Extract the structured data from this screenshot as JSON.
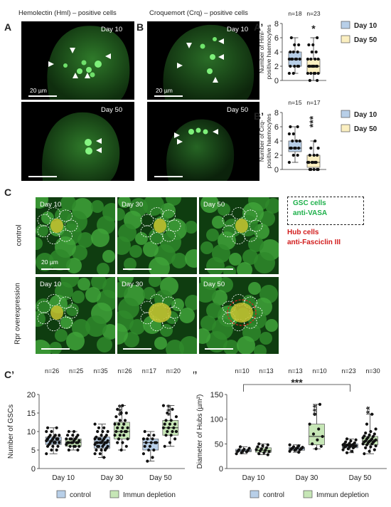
{
  "panels": {
    "A": {
      "label": "A",
      "title": "Hemolectin (Hml) – positive cells",
      "day_top": "Day 10",
      "day_bottom": "Day 50",
      "scale": "20 µm"
    },
    "B": {
      "label": "B",
      "title": "Croquemort (Crq) – positive cells",
      "day_top": "Day 10",
      "day_bottom": "Day 50",
      "scale": "20 µm"
    },
    "C": {
      "label": "C",
      "row1": "control",
      "row2": "Rpr overexpression",
      "days": [
        "Day 10",
        "Day 30",
        "Day 50"
      ],
      "scale": "20 µm",
      "legend": {
        "gsc": "GSC cells",
        "vasa": "anti-VASA",
        "hub": "Hub cells",
        "fas": "anti-Fasciclin III"
      }
    }
  },
  "colors": {
    "control": "#b8cfe8",
    "treatment": "#fbefc0",
    "immun": "#c6e6b6",
    "green_signal": "#22c63c",
    "hub_red": "#e42020"
  },
  "chart_data": [
    {
      "id": "A-prime",
      "label": "A’",
      "type": "box",
      "categories": [
        "Day 10",
        "Day 50"
      ],
      "n_labels": [
        "n=18",
        "n=23"
      ],
      "ylabel": "Number of Hml-positive haemocytes",
      "ylabel_lines": [
        "Number of Hml-",
        "positive haemocytes"
      ],
      "ylim": [
        0,
        8
      ],
      "yticks": [
        0,
        2,
        4,
        6,
        8
      ],
      "significance": "*",
      "legend": [
        "Day 10",
        "Day 50"
      ],
      "series": [
        {
          "name": "Day 10",
          "color": "#b8cfe8",
          "q1": 2,
          "median": 3,
          "q3": 4,
          "min": 1,
          "max": 6,
          "points": [
            1,
            1,
            2,
            2,
            2,
            2,
            3,
            3,
            3,
            3,
            3,
            3,
            4,
            4,
            4,
            5,
            5,
            6
          ]
        },
        {
          "name": "Day 50",
          "color": "#fbefc0",
          "q1": 1,
          "median": 2,
          "q3": 3,
          "min": 0,
          "max": 6,
          "points": [
            0,
            0,
            1,
            1,
            1,
            1,
            1,
            2,
            2,
            2,
            2,
            2,
            2,
            2,
            3,
            3,
            3,
            3,
            4,
            4,
            5,
            5,
            6
          ]
        }
      ]
    },
    {
      "id": "B-prime",
      "label": "B’",
      "type": "box",
      "categories": [
        "Day 10",
        "Day 50"
      ],
      "n_labels": [
        "n=15",
        "n=17"
      ],
      "ylabel": "Number of Crq-positive haemocytes",
      "ylabel_lines": [
        "Number of Crq-",
        "positive haemocytes"
      ],
      "ylim": [
        0,
        8
      ],
      "yticks": [
        0,
        2,
        4,
        6,
        8
      ],
      "significance": "***",
      "legend": [
        "Day 10",
        "Day 50"
      ],
      "series": [
        {
          "name": "Day 10",
          "color": "#b8cfe8",
          "q1": 2.5,
          "median": 3,
          "q3": 4,
          "min": 1,
          "max": 6,
          "points": [
            1,
            2,
            2,
            3,
            3,
            3,
            3,
            3,
            4,
            4,
            4,
            5,
            5,
            6,
            6
          ]
        },
        {
          "name": "Day 50",
          "color": "#fbefc0",
          "q1": 0.3,
          "median": 1,
          "q3": 2,
          "min": 0,
          "max": 4,
          "points": [
            0,
            0,
            0,
            0,
            0,
            1,
            1,
            1,
            1,
            1,
            1,
            2,
            2,
            2,
            3,
            3,
            4
          ]
        }
      ]
    },
    {
      "id": "C-prime",
      "label": "C’",
      "type": "box",
      "categories": [
        "Day 10",
        "Day 30",
        "Day 50"
      ],
      "n_labels": [
        [
          "n=26",
          "n=25"
        ],
        [
          "n=35",
          "n=26"
        ],
        [
          "n=17",
          "n=20"
        ]
      ],
      "ylabel": "Number of GSCs",
      "ylim": [
        0,
        20
      ],
      "yticks": [
        0,
        5,
        10,
        15,
        20
      ],
      "significance": [
        "",
        "***",
        "***"
      ],
      "legend": [
        "control",
        "Immun depletion"
      ],
      "groups": [
        [
          {
            "name": "control",
            "color": "#b8cfe8",
            "q1": 6.5,
            "median": 7.5,
            "q3": 8.5,
            "min": 4,
            "max": 11,
            "points": [
              4,
              5,
              5,
              6,
              6,
              6,
              6.5,
              7,
              7,
              7,
              7,
              7.5,
              7.5,
              8,
              8,
              8,
              8,
              8.5,
              8.5,
              9,
              9,
              9,
              10,
              10,
              11,
              11
            ]
          },
          {
            "name": "Immun depletion",
            "color": "#c6e6b6",
            "q1": 6,
            "median": 7,
            "q3": 8,
            "min": 5,
            "max": 10,
            "points": [
              5,
              5,
              6,
              6,
              6,
              6,
              6.5,
              7,
              7,
              7,
              7,
              7,
              7,
              7.5,
              7.5,
              8,
              8,
              8,
              8,
              8.5,
              9,
              9,
              9,
              10,
              10
            ]
          }
        ],
        [
          {
            "name": "control",
            "color": "#b8cfe8",
            "q1": 5.5,
            "median": 7,
            "q3": 8.5,
            "min": 3,
            "max": 12,
            "points": [
              3,
              4,
              4,
              5,
              5,
              5,
              5.5,
              6,
              6,
              6,
              6,
              6.5,
              6.5,
              7,
              7,
              7,
              7,
              7,
              7,
              7.5,
              7.5,
              8,
              8,
              8,
              8,
              8.5,
              8.5,
              9,
              9,
              10,
              10,
              10,
              11,
              11,
              12
            ]
          },
          {
            "name": "Immun depletion",
            "color": "#c6e6b6",
            "q1": 8,
            "median": 10,
            "q3": 12.5,
            "min": 5,
            "max": 17,
            "points": [
              5,
              6,
              7,
              7,
              8,
              8,
              9,
              9,
              9,
              10,
              10,
              10,
              10,
              11,
              11,
              11,
              12,
              12,
              12,
              13,
              13,
              14,
              15,
              15,
              16,
              17
            ]
          }
        ],
        [
          {
            "name": "control",
            "color": "#b8cfe8",
            "q1": 5,
            "median": 7,
            "q3": 8,
            "min": 2,
            "max": 10,
            "points": [
              2,
              3,
              4,
              5,
              5,
              6,
              6,
              7,
              7,
              7,
              7,
              8,
              8,
              8,
              9,
              9,
              10
            ]
          },
          {
            "name": "Immun depletion",
            "color": "#c6e6b6",
            "q1": 9,
            "median": 11,
            "q3": 13,
            "min": 6,
            "max": 17,
            "points": [
              6,
              7,
              8,
              9,
              9,
              10,
              10,
              10,
              11,
              11,
              11,
              12,
              12,
              12,
              13,
              13,
              14,
              15,
              16,
              17
            ]
          }
        ]
      ]
    },
    {
      "id": "C-double-prime",
      "label": "C’’",
      "type": "box",
      "categories": [
        "Day 10",
        "Day 30",
        "Day 50"
      ],
      "n_labels": [
        [
          "n=10",
          "n=13"
        ],
        [
          "n=13",
          "n=10"
        ],
        [
          "n=23",
          "n=30"
        ]
      ],
      "ylabel": "Diameter of Hubs (µm²)",
      "ylim": [
        0,
        150
      ],
      "yticks": [
        0,
        50,
        100,
        150
      ],
      "significance": [
        "",
        "***",
        "**"
      ],
      "bracket": "***",
      "legend": [
        "control",
        "Immun depletion"
      ],
      "groups": [
        [
          {
            "name": "control",
            "color": "#b8cfe8",
            "q1": 34,
            "median": 36,
            "q3": 39,
            "min": 30,
            "max": 44,
            "points": [
              30,
              32,
              34,
              35,
              36,
              37,
              38,
              39,
              41,
              44
            ]
          },
          {
            "name": "Immun depletion",
            "color": "#c6e6b6",
            "q1": 33,
            "median": 37,
            "q3": 42,
            "min": 28,
            "max": 50,
            "points": [
              28,
              30,
              32,
              34,
              36,
              37,
              38,
              40,
              42,
              44,
              46,
              48,
              50
            ]
          }
        ],
        [
          {
            "name": "control",
            "color": "#b8cfe8",
            "q1": 37,
            "median": 40,
            "q3": 43,
            "min": 33,
            "max": 48,
            "points": [
              33,
              35,
              37,
              38,
              39,
              40,
              40,
              41,
              42,
              43,
              44,
              46,
              48
            ]
          },
          {
            "name": "Immun depletion",
            "color": "#c6e6b6",
            "q1": 48,
            "median": 65,
            "q3": 90,
            "min": 40,
            "max": 130,
            "points": [
              40,
              45,
              50,
              58,
              65,
              70,
              80,
              90,
              110,
              130
            ]
          }
        ],
        [
          {
            "name": "control",
            "color": "#b8cfe8",
            "q1": 42,
            "median": 46,
            "q3": 50,
            "min": 32,
            "max": 60,
            "points": [
              32,
              35,
              38,
              40,
              42,
              43,
              44,
              45,
              45,
              46,
              46,
              47,
              47,
              48,
              48,
              49,
              50,
              51,
              52,
              54,
              56,
              58,
              60
            ]
          },
          {
            "name": "Immun depletion",
            "color": "#c6e6b6",
            "q1": 48,
            "median": 56,
            "q3": 65,
            "min": 30,
            "max": 110,
            "points": [
              30,
              35,
              38,
              42,
              44,
              46,
              48,
              50,
              50,
              52,
              53,
              54,
              55,
              56,
              56,
              57,
              58,
              60,
              60,
              62,
              63,
              65,
              66,
              68,
              70,
              72,
              75,
              80,
              90,
              110
            ]
          }
        ]
      ]
    }
  ]
}
